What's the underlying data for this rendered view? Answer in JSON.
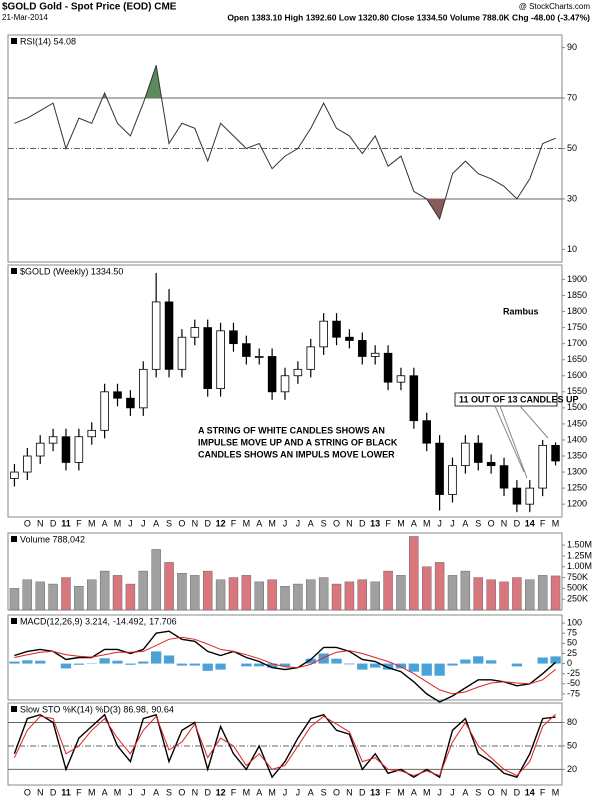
{
  "header": {
    "title": "$GOLD Gold - Spot Price (EOD) CME",
    "date": "21-Mar-2014",
    "quote": "Open 1383.10 High 1392.60 Low 1320.80 Close 1334.50 Volume 788.0K Chg -48.00 (-3.47%)",
    "source": "@ StockCharts.com"
  },
  "chart_data": [
    {
      "type": "line",
      "legend": "RSI(14) 54.08",
      "color": "#333333",
      "over_color": "#5b8a5b",
      "under_color": "#8a5a5a",
      "values": [
        60,
        62,
        65,
        68,
        50,
        62,
        60,
        72,
        60,
        55,
        68,
        83,
        52,
        60,
        58,
        45,
        60,
        55,
        50,
        52,
        42,
        47,
        50,
        58,
        68,
        58,
        55,
        48,
        55,
        43,
        47,
        33,
        30,
        22,
        40,
        45,
        40,
        38,
        35,
        30,
        38,
        52,
        54.08
      ],
      "ylim": [
        5,
        95
      ],
      "yticks": [
        10,
        30,
        50,
        70,
        90
      ],
      "levels": [
        30,
        70
      ],
      "midline": 50
    },
    {
      "type": "candlestick",
      "legend": "$GOLD (Weekly) 1334.50",
      "up_color": "#ffffff",
      "down_color": "#000000",
      "annotations": {
        "author": "Rambus",
        "count": "11 OUT OF 13 CANDLES UP",
        "note": [
          "A STRING OF WHITE CANDLES SHOWS AN",
          "IMPULSE MOVE UP AND A STRING OF BLACK",
          "CANDLES SHOWS AN IMPULS MOVE LOWER"
        ]
      },
      "categories": [
        null,
        "O",
        "N",
        "D",
        "11",
        "F",
        "M",
        "A",
        "M",
        "J",
        "J",
        "A",
        "S",
        "O",
        "N",
        "D",
        "12",
        "F",
        "M",
        "A",
        "M",
        "J",
        "J",
        "A",
        "S",
        "O",
        "N",
        "D",
        "13",
        "F",
        "M",
        "A",
        "M",
        "J",
        "J",
        "A",
        "S",
        "O",
        "N",
        "D",
        "14",
        "F",
        "M"
      ],
      "open": [
        1280,
        1300,
        1350,
        1390,
        1410,
        1330,
        1410,
        1430,
        1550,
        1530,
        1500,
        1620,
        1830,
        1620,
        1720,
        1750,
        1560,
        1740,
        1700,
        1660,
        1660,
        1550,
        1600,
        1620,
        1690,
        1770,
        1720,
        1710,
        1660,
        1670,
        1580,
        1600,
        1460,
        1390,
        1230,
        1320,
        1390,
        1330,
        1320,
        1250,
        1200,
        1250,
        1383.1
      ],
      "high": [
        1325,
        1375,
        1415,
        1435,
        1435,
        1435,
        1455,
        1575,
        1575,
        1555,
        1645,
        1920,
        1870,
        1745,
        1775,
        1775,
        1765,
        1765,
        1725,
        1685,
        1685,
        1625,
        1645,
        1715,
        1795,
        1795,
        1745,
        1735,
        1695,
        1695,
        1625,
        1625,
        1485,
        1415,
        1345,
        1415,
        1415,
        1355,
        1345,
        1275,
        1275,
        1400,
        1392.6
      ],
      "low": [
        1255,
        1275,
        1325,
        1365,
        1305,
        1305,
        1385,
        1405,
        1505,
        1475,
        1475,
        1595,
        1595,
        1595,
        1695,
        1535,
        1535,
        1675,
        1635,
        1635,
        1525,
        1525,
        1575,
        1595,
        1665,
        1695,
        1685,
        1635,
        1635,
        1555,
        1555,
        1435,
        1365,
        1180,
        1205,
        1295,
        1305,
        1295,
        1225,
        1175,
        1175,
        1225,
        1320.8
      ],
      "close": [
        1300,
        1350,
        1390,
        1410,
        1330,
        1410,
        1430,
        1550,
        1530,
        1500,
        1620,
        1830,
        1620,
        1720,
        1750,
        1560,
        1740,
        1700,
        1660,
        1660,
        1550,
        1600,
        1620,
        1690,
        1770,
        1720,
        1710,
        1660,
        1670,
        1580,
        1600,
        1460,
        1390,
        1230,
        1320,
        1390,
        1330,
        1320,
        1250,
        1200,
        1250,
        1383.1,
        1334.5
      ],
      "ylim": [
        1160,
        1945
      ],
      "yticks": [
        1200,
        1250,
        1300,
        1350,
        1400,
        1450,
        1500,
        1550,
        1600,
        1650,
        1700,
        1750,
        1800,
        1850,
        1900
      ]
    },
    {
      "type": "bar",
      "legend": "Volume 788,042",
      "up_color": "#a0a0a0",
      "down_color": "#d9777f",
      "values": [
        500000,
        700000,
        650000,
        600000,
        750000,
        550000,
        700000,
        900000,
        800000,
        600000,
        900000,
        1400000,
        1100000,
        850000,
        800000,
        900000,
        700000,
        750000,
        800000,
        650000,
        700000,
        550000,
        600000,
        700000,
        750000,
        600000,
        650000,
        700000,
        650000,
        900000,
        800000,
        1700000,
        1000000,
        1100000,
        800000,
        900000,
        750000,
        700000,
        650000,
        750000,
        700000,
        800000,
        788042
      ],
      "ylim": [
        0,
        1780000
      ],
      "yticks": [
        {
          "value": 250000,
          "label": "250K"
        },
        {
          "value": 500000,
          "label": "500K"
        },
        {
          "value": 750000,
          "label": "750K"
        },
        {
          "value": 1000000,
          "label": "1.00M"
        },
        {
          "value": 1250000,
          "label": "1.25M"
        },
        {
          "value": 1500000,
          "label": "1.50M"
        }
      ]
    },
    {
      "type": "macd",
      "legend": [
        "MACD(12,26,9) 3.214,",
        "-14.492,",
        "17.706"
      ],
      "series": [
        {
          "color": "#000000",
          "values": [
            20,
            30,
            35,
            30,
            10,
            15,
            15,
            35,
            35,
            25,
            35,
            75,
            80,
            60,
            55,
            30,
            20,
            30,
            15,
            5,
            -10,
            -15,
            -10,
            10,
            40,
            40,
            30,
            10,
            5,
            -10,
            -20,
            -45,
            -75,
            -95,
            -80,
            -60,
            -40,
            -40,
            -45,
            -55,
            -50,
            -25,
            3.214
          ]
        },
        {
          "color": "#e02020",
          "values": [
            15,
            22,
            28,
            30,
            22,
            18,
            16,
            22,
            28,
            28,
            30,
            45,
            60,
            65,
            60,
            48,
            35,
            30,
            22,
            12,
            0,
            -8,
            -10,
            -2,
            15,
            28,
            32,
            25,
            15,
            5,
            -8,
            -25,
            -45,
            -65,
            -75,
            -70,
            -58,
            -48,
            -45,
            -48,
            -50,
            -40,
            -14.492
          ]
        },
        {
          "color": "#4aa3d8",
          "values": [
            5,
            8,
            7,
            0,
            -12,
            -3,
            -1,
            13,
            7,
            -3,
            5,
            30,
            20,
            -5,
            -5,
            -18,
            -15,
            0,
            -7,
            -7,
            -10,
            -7,
            0,
            12,
            25,
            12,
            -2,
            -15,
            -10,
            -15,
            -12,
            -20,
            -30,
            -30,
            -5,
            10,
            18,
            8,
            0,
            -7,
            0,
            15,
            17.706
          ]
        }
      ],
      "ylim": [
        -90,
        120
      ],
      "yticks": [
        -75,
        -50,
        -25,
        0,
        25,
        50,
        75,
        100
      ]
    },
    {
      "type": "line",
      "legend": [
        "Slow STO %K(14) %D(3) 86.98,",
        "90.64"
      ],
      "series": [
        {
          "color": "#000000",
          "values": [
            40,
            85,
            90,
            80,
            20,
            60,
            75,
            90,
            50,
            30,
            85,
            90,
            30,
            70,
            80,
            20,
            75,
            40,
            20,
            50,
            10,
            30,
            60,
            85,
            90,
            70,
            65,
            20,
            40,
            15,
            20,
            10,
            20,
            10,
            70,
            85,
            40,
            30,
            15,
            10,
            40,
            85,
            86.98
          ]
        },
        {
          "color": "#e02020",
          "values": [
            35,
            70,
            88,
            85,
            40,
            50,
            70,
            85,
            60,
            40,
            70,
            88,
            45,
            55,
            78,
            35,
            60,
            50,
            25,
            40,
            20,
            25,
            50,
            75,
            88,
            78,
            68,
            30,
            35,
            20,
            18,
            12,
            18,
            12,
            55,
            80,
            50,
            35,
            20,
            12,
            30,
            75,
            90.64
          ]
        }
      ],
      "ylim": [
        0,
        105
      ],
      "yticks": [
        20,
        50,
        80
      ],
      "levels": [
        20,
        80
      ],
      "midline": 50
    }
  ]
}
